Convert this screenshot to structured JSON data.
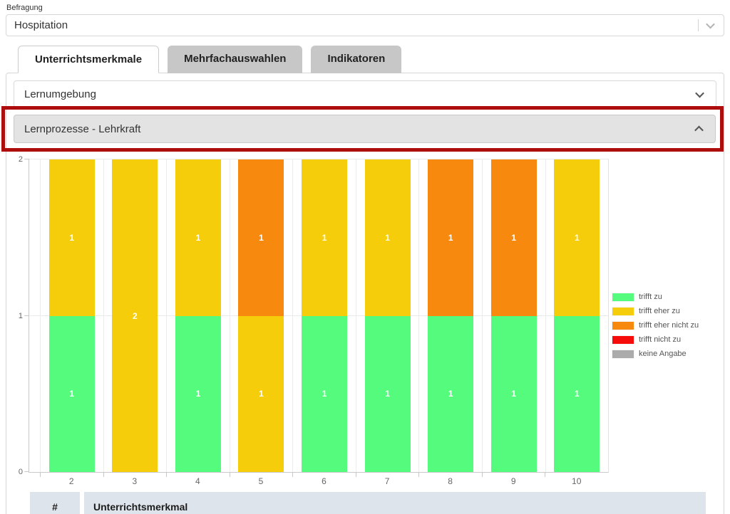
{
  "survey_select": {
    "label": "Befragung",
    "value": "Hospitation"
  },
  "tabs": {
    "items": [
      {
        "label": "Unterrichtsmerkmale",
        "active": true
      },
      {
        "label": "Mehrfachauswahlen",
        "active": false
      },
      {
        "label": "Indikatoren",
        "active": false
      }
    ]
  },
  "accordions": {
    "lernumgebung": {
      "label": "Lernumgebung",
      "state": "collapsed"
    },
    "lernprozesse": {
      "label": "Lernprozesse - Lehrkraft",
      "state": "expanded"
    }
  },
  "annotation": {
    "color": "#ae0d0d",
    "purpose": "highlight around Lernprozesse - Lehrkraft header"
  },
  "chart_data": {
    "type": "bar",
    "stacked": true,
    "categories": [
      "2",
      "3",
      "4",
      "5",
      "6",
      "7",
      "8",
      "9",
      "10"
    ],
    "series": [
      {
        "name": "trifft zu",
        "color": "#54fb7d",
        "values": [
          1,
          0,
          1,
          0,
          1,
          1,
          1,
          1,
          1
        ]
      },
      {
        "name": "trifft eher zu",
        "color": "#f6cd0b",
        "values": [
          1,
          2,
          1,
          1,
          1,
          1,
          0,
          0,
          1
        ]
      },
      {
        "name": "trifft eher nicht zu",
        "color": "#f7890e",
        "values": [
          0,
          0,
          0,
          1,
          0,
          0,
          1,
          1,
          0
        ]
      },
      {
        "name": "trifft nicht zu",
        "color": "#f70c0c",
        "values": [
          0,
          0,
          0,
          0,
          0,
          0,
          0,
          0,
          0
        ]
      },
      {
        "name": "keine Angabe",
        "color": "#ababab",
        "values": [
          0,
          0,
          0,
          0,
          0,
          0,
          0,
          0,
          0
        ]
      }
    ],
    "ylim": [
      0,
      2
    ],
    "yticks": [
      0,
      1,
      2
    ],
    "grid": true,
    "legend_position": "right",
    "bar_labels": "segment values shown as white numbers"
  },
  "table": {
    "headers": [
      "#",
      "Unterrichtsmerkmal"
    ]
  }
}
